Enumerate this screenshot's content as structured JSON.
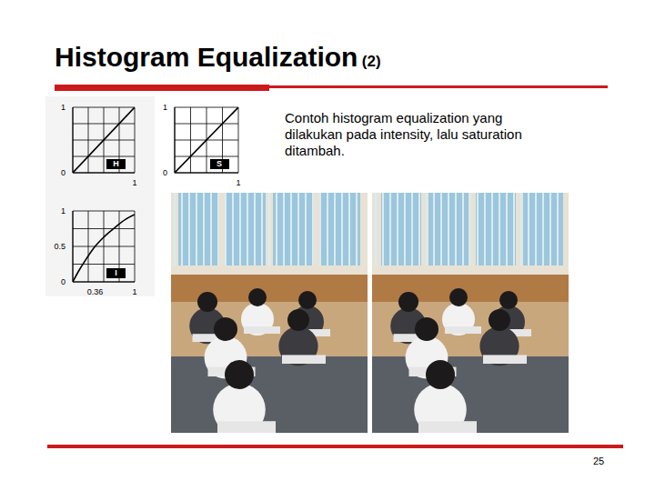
{
  "slide": {
    "title": "Histogram Equalization",
    "title_suffix": "(2)",
    "text_lines": [
      "Contoh histogram equalization yang",
      "dilakukan pada intensity, lalu saturation",
      "ditambah."
    ],
    "page_number": 25
  },
  "chart_data": [
    {
      "type": "line",
      "annotation": "H",
      "x": [
        0,
        1
      ],
      "values": [
        0,
        1
      ],
      "xlim": [
        0,
        1
      ],
      "ylim": [
        0,
        1
      ],
      "xticks": [
        1
      ],
      "yticks": [
        0,
        1
      ],
      "grid": true,
      "color": "#000000"
    },
    {
      "type": "line",
      "annotation": "S",
      "x": [
        0,
        1
      ],
      "values": [
        0,
        1
      ],
      "xlim": [
        0,
        1
      ],
      "ylim": [
        0,
        1
      ],
      "xticks": [
        1
      ],
      "yticks": [
        0,
        1
      ],
      "grid": true,
      "color": "#000000"
    },
    {
      "type": "line",
      "annotation": "I",
      "x": [
        0,
        0.1,
        0.2,
        0.36,
        0.5,
        0.7,
        0.85,
        1
      ],
      "values": [
        0,
        0.16,
        0.3,
        0.5,
        0.63,
        0.78,
        0.88,
        0.95
      ],
      "xlim": [
        0,
        1
      ],
      "ylim": [
        0,
        1
      ],
      "xticks": [
        0.36,
        1
      ],
      "yticks": [
        0,
        0.5,
        1
      ],
      "grid": true,
      "color": "#000000"
    }
  ]
}
